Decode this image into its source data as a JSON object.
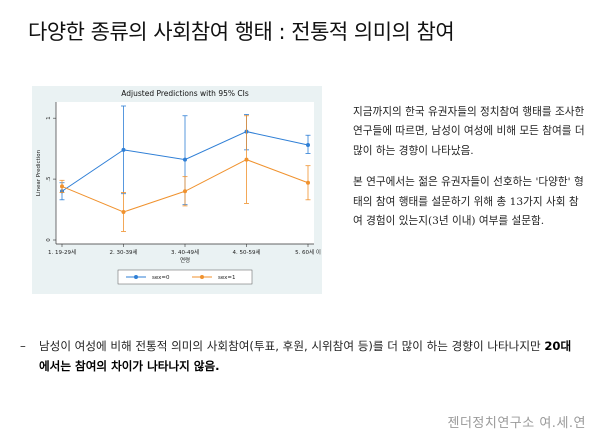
{
  "slide": {
    "title": "다양한 종류의 사회참여 행태 : 전통적 의미의 참여",
    "description": [
      "지금까지의 한국 유권자들의 정치참여 행태를 조사한 연구들에 따르면, 남성이 여성에 비해 모든 참여를 더 많이 하는 경향이 나타났음.",
      "본 연구에서는 젊은 유권자들이 선호하는 '다양한' 형태의 참여 행태를 설문하기 위해 총 13가지 사회 참여 경험이 있는지(3년 이내) 여부를 설문함."
    ],
    "bullet": {
      "dash": "–",
      "text_plain": "남성이 여성에 비해 전통적 의미의 사회참여(투표, 후원, 시위참여 등)를 더 많이 하는 경향이 나타나지만 ",
      "text_bold": "20대에서는 참여의 차이가 나타나지 않음."
    },
    "footer": "젠더정치연구소 여.세.연"
  },
  "chart_data": {
    "type": "line",
    "title": "Adjusted Predictions with 95% CIs",
    "xlabel": "연령",
    "ylabel": "Linear Prediction",
    "categories": [
      "1. 19-29세",
      "2. 30-39세",
      "3. 40-49세",
      "4. 50-59세",
      "5. 60세 이"
    ],
    "yticks": [
      "0",
      ".5",
      "1"
    ],
    "ylim": [
      0,
      1.1
    ],
    "series": [
      {
        "name": "sex=0",
        "color": "#2f7fd6",
        "values": [
          0.4,
          0.74,
          0.66,
          0.89,
          0.78
        ],
        "ci_low": [
          0.33,
          0.38,
          0.29,
          0.74,
          0.71
        ],
        "ci_high": [
          0.47,
          1.1,
          1.02,
          1.03,
          0.86
        ]
      },
      {
        "name": "sex=1",
        "color": "#f0922e",
        "values": [
          0.44,
          0.23,
          0.4,
          0.66,
          0.47
        ],
        "ci_low": [
          0.39,
          0.07,
          0.28,
          0.3,
          0.33
        ],
        "ci_high": [
          0.49,
          0.39,
          0.52,
          1.02,
          0.61
        ]
      }
    ],
    "legend_position": "bottom",
    "grid": false
  }
}
